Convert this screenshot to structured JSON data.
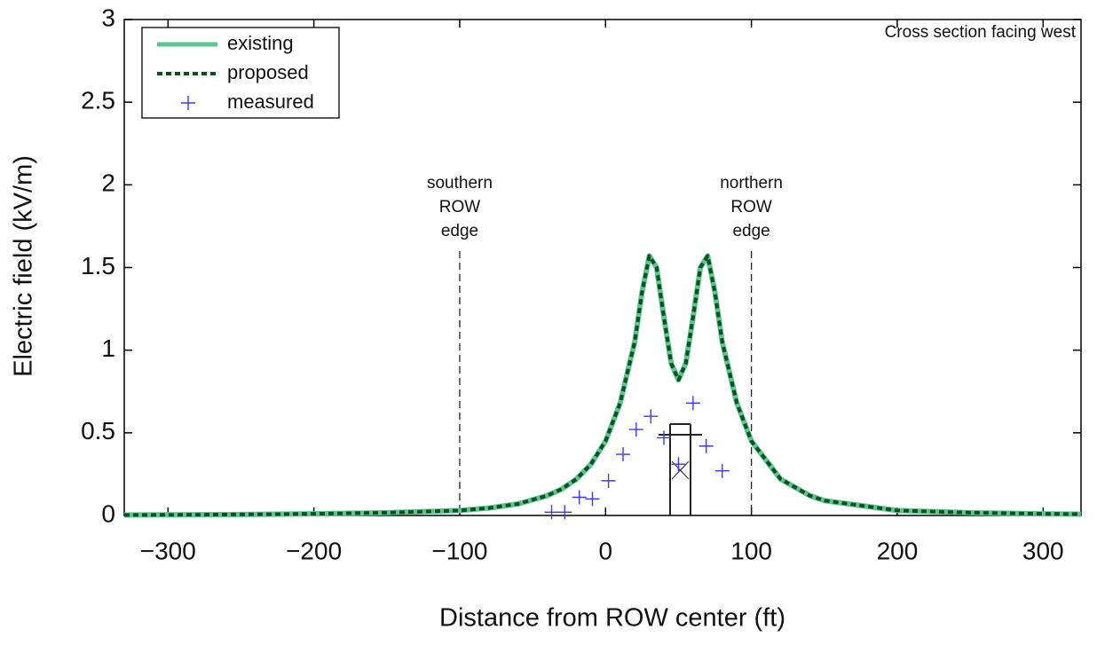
{
  "chart_data": {
    "type": "line",
    "xlabel": "Distance from ROW center (ft)",
    "ylabel": "Electric field (kV/m)",
    "xlim": [
      -330,
      326
    ],
    "ylim": [
      0,
      3
    ],
    "xticks": [
      {
        "value": -300,
        "label": "−300"
      },
      {
        "value": -200,
        "label": "−200"
      },
      {
        "value": -100,
        "label": "−100"
      },
      0,
      100,
      200,
      300
    ],
    "yticks": [
      0,
      0.5,
      1,
      1.5,
      2,
      2.5,
      3
    ],
    "legend": "upper left",
    "annotations": [
      {
        "text": [
          "southern",
          "ROW",
          "edge"
        ],
        "x": -100
      },
      {
        "text": [
          "northern",
          "ROW",
          "edge"
        ],
        "x": 100
      },
      {
        "text": [
          "Cross section facing west"
        ]
      }
    ],
    "series": [
      {
        "name": "existing",
        "color": "#5cc595",
        "style": "solid",
        "x": [
          -330,
          -300,
          -250,
          -200,
          -150,
          -100,
          -80,
          -60,
          -40,
          -30,
          -20,
          -10,
          0,
          10,
          20,
          25,
          30,
          35,
          40,
          45,
          50,
          55,
          60,
          65,
          70,
          75,
          80,
          90,
          100,
          120,
          140,
          150,
          200,
          250,
          300,
          326
        ],
        "values": [
          0.003,
          0.004,
          0.006,
          0.01,
          0.017,
          0.03,
          0.045,
          0.07,
          0.12,
          0.16,
          0.22,
          0.31,
          0.45,
          0.68,
          1.05,
          1.35,
          1.57,
          1.5,
          1.2,
          0.92,
          0.82,
          0.92,
          1.2,
          1.5,
          1.57,
          1.35,
          1.05,
          0.68,
          0.45,
          0.22,
          0.12,
          0.09,
          0.03,
          0.017,
          0.01,
          0.008
        ]
      },
      {
        "name": "proposed",
        "color": "#0b4f1a",
        "style": "dotted",
        "x": [
          -330,
          -300,
          -250,
          -200,
          -150,
          -100,
          -80,
          -60,
          -40,
          -30,
          -20,
          -10,
          0,
          10,
          20,
          25,
          30,
          35,
          40,
          45,
          50,
          55,
          60,
          65,
          70,
          75,
          80,
          90,
          100,
          120,
          140,
          150,
          200,
          250,
          300,
          326
        ],
        "values": [
          0.003,
          0.004,
          0.006,
          0.01,
          0.017,
          0.03,
          0.045,
          0.07,
          0.12,
          0.16,
          0.22,
          0.31,
          0.45,
          0.68,
          1.05,
          1.35,
          1.57,
          1.5,
          1.2,
          0.92,
          0.82,
          0.92,
          1.2,
          1.5,
          1.57,
          1.35,
          1.05,
          0.68,
          0.45,
          0.22,
          0.12,
          0.09,
          0.03,
          0.017,
          0.01,
          0.008
        ]
      },
      {
        "name": "measured",
        "color": "#3a3af0",
        "style": "plus",
        "x": [
          -37,
          -28,
          -18,
          -9,
          2,
          12,
          21,
          31,
          40,
          50,
          60,
          69,
          80
        ],
        "values": [
          0.02,
          0.02,
          0.11,
          0.1,
          0.21,
          0.37,
          0.52,
          0.6,
          0.47,
          0.31,
          0.68,
          0.42,
          0.27
        ]
      }
    ]
  }
}
